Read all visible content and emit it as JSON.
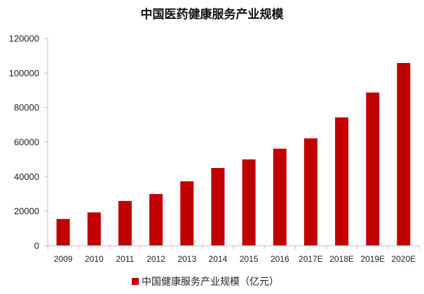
{
  "chart_data": {
    "type": "bar",
    "title": "中国医药健康服务产业规模",
    "categories": [
      "2009",
      "2010",
      "2011",
      "2012",
      "2013",
      "2014",
      "2015",
      "2016",
      "2017E",
      "2018E",
      "2019E",
      "2020E"
    ],
    "series": [
      {
        "name": "中国健康服务产业规模（亿元）",
        "values": [
          15500,
          19300,
          25900,
          29900,
          37300,
          45000,
          50000,
          56200,
          62200,
          74300,
          88700,
          105800
        ]
      }
    ],
    "ylim": [
      0,
      120000
    ],
    "yticks": [
      "0",
      "20000",
      "40000",
      "60000",
      "80000",
      "100000",
      "120000"
    ],
    "xlabel": "",
    "ylabel": "",
    "grid": false,
    "legend_position": "bottom",
    "colors": {
      "bar": "#C00000",
      "axis": "#BFBFBF"
    }
  }
}
